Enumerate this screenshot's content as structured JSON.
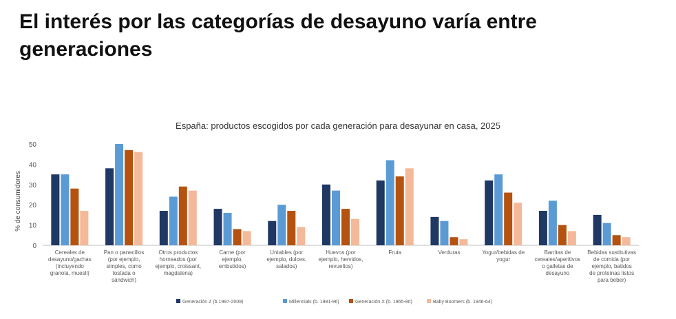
{
  "page": {
    "title": "El interés por las categorías de desayuno varía entre generaciones"
  },
  "chart_data": {
    "type": "bar",
    "title": "España: productos escogidos por cada generación para desayunar en casa, 2025",
    "ylabel": "% de consumidores",
    "ylim": [
      0,
      50
    ],
    "yticks": [
      "0",
      "10",
      "20",
      "30",
      "40",
      "50"
    ],
    "grid": false,
    "legend_position": "bottom",
    "categories": [
      [
        "Cereales de",
        "desayuno/gachas",
        "(incluyendo",
        "granola, muesli)"
      ],
      [
        "Pan o panecillos",
        "(por ejemplo,",
        "simples, como",
        "tostada o",
        "sándwich)"
      ],
      [
        "Otros productos",
        "horneados (por",
        "ejemplo, croissant,",
        "magdalena)"
      ],
      [
        "Carne (por",
        "ejemplo,",
        "embutidos)"
      ],
      [
        "Untables (por",
        "ejemplo, dulces,",
        "salados)"
      ],
      [
        "Huevos (por",
        "ejemplo, hervidos,",
        "revueltos)"
      ],
      [
        "Fruta"
      ],
      [
        "Verduras"
      ],
      [
        "Yogur/bebidas de",
        "yogur"
      ],
      [
        "Barritas de",
        "cereales/aperitivos",
        "o galletas de",
        "desayuno"
      ],
      [
        "Bebidas sustitutivas",
        "de comida (por",
        "ejemplo, batidos",
        "de proteínas listos",
        "para beber)"
      ]
    ],
    "series": [
      {
        "name": "Generación Z (b.1997-2009)",
        "color": "#1f3864",
        "values": [
          35,
          38,
          17,
          18,
          12,
          30,
          32,
          14,
          32,
          17,
          15
        ]
      },
      {
        "name": "Millennials (b. 1981-96)",
        "color": "#5b9bd5",
        "values": [
          35,
          50,
          24,
          16,
          20,
          27,
          42,
          12,
          35,
          22,
          11
        ]
      },
      {
        "name": "Generación X (b. 1965-80)",
        "color": "#b5520f",
        "values": [
          28,
          47,
          29,
          8,
          17,
          18,
          34,
          4,
          26,
          10,
          5
        ]
      },
      {
        "name": "Baby Boomers (b. 1946-64)",
        "color": "#f4b999",
        "values": [
          17,
          46,
          27,
          7,
          9,
          13,
          38,
          3,
          21,
          7,
          4
        ]
      }
    ]
  }
}
